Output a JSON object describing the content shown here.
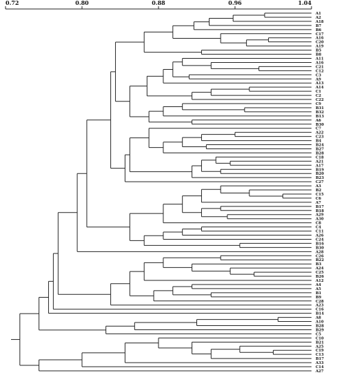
{
  "scale": {
    "min": 0.72,
    "max": 1.04,
    "ticks": [
      "0.72",
      "0.80",
      "0.88",
      "0.96",
      "1.04"
    ]
  },
  "leaves": [
    "A1",
    "A2",
    "A18",
    "B7",
    "B6",
    "C17",
    "A16",
    "C20",
    "A19",
    "B5",
    "B8",
    "A11",
    "A16",
    "C21",
    "C12",
    "C3",
    "A9",
    "A13",
    "A14",
    "C1",
    "C2",
    "C22",
    "C9",
    "B31",
    "B32",
    "B13",
    "A6",
    "B30",
    "C7",
    "A22",
    "C23",
    "B4",
    "B24",
    "B27",
    "B28",
    "C18",
    "A21",
    "A17",
    "B19",
    "B20",
    "B23",
    "C27",
    "A3",
    "B2",
    "C15",
    "C6",
    "A7",
    "B17",
    "B18",
    "A29",
    "A30",
    "C8",
    "C4",
    "C11",
    "A26",
    "C24",
    "B16",
    "B30",
    "A28",
    "C26",
    "B22",
    "B3",
    "A24",
    "C25",
    "B26",
    "A12",
    "A4",
    "A5",
    "B1",
    "B9",
    "C28",
    "A23",
    "C16",
    "B14",
    "A8",
    "A10",
    "B28",
    "B29",
    "C5",
    "C10",
    "B21",
    "A25",
    "C19",
    "C13",
    "B17",
    "A33",
    "C14",
    "A27"
  ],
  "clusters": {
    "A1": {
      "left": [
        "L",
        0
      ],
      "right": [
        "L",
        1
      ],
      "sim": 0.991
    },
    "A2": {
      "left": [
        "N",
        "A1"
      ],
      "right": [
        "L",
        2
      ],
      "sim": 0.958
    },
    "A3": {
      "left": [
        "N",
        "A2"
      ],
      "right": [
        "L",
        3
      ],
      "sim": 0.933
    },
    "A4": {
      "left": [
        "N",
        "A3"
      ],
      "right": [
        "L",
        4
      ],
      "sim": 0.917
    },
    "A5": {
      "left": [
        "L",
        6
      ],
      "right": [
        "L",
        7
      ],
      "sim": 0.995
    },
    "A6": {
      "left": [
        "N",
        "A5"
      ],
      "right": [
        "L",
        8
      ],
      "sim": 0.972
    },
    "A7": {
      "left": [
        "L",
        5
      ],
      "right": [
        "N",
        "A6"
      ],
      "sim": 0.945
    },
    "A8": {
      "left": [
        "N",
        "A4"
      ],
      "right": [
        "N",
        "A7"
      ],
      "sim": 0.895
    },
    "A9": {
      "left": [
        "L",
        9
      ],
      "right": [
        "L",
        10
      ],
      "sim": 0.925
    },
    "A10": {
      "left": [
        "N",
        "A8"
      ],
      "right": [
        "N",
        "A9"
      ],
      "sim": 0.865
    },
    "B1": {
      "left": [
        "L",
        13
      ],
      "right": [
        "L",
        14
      ],
      "sim": 0.985
    },
    "B2": {
      "left": [
        "L",
        12
      ],
      "right": [
        "N",
        "B1"
      ],
      "sim": 0.935
    },
    "B3": {
      "left": [
        "L",
        11
      ],
      "right": [
        "N",
        "B2"
      ],
      "sim": 0.905
    },
    "B4": {
      "left": [
        "L",
        15
      ],
      "right": [
        "L",
        16
      ],
      "sim": 0.912
    },
    "B5": {
      "left": [
        "N",
        "B3"
      ],
      "right": [
        "N",
        "B4"
      ],
      "sim": 0.895
    },
    "B6": {
      "left": [
        "N",
        "B5"
      ],
      "right": [
        "L",
        17
      ],
      "sim": 0.885
    },
    "B7": {
      "left": [
        "L",
        18
      ],
      "right": [
        "L",
        19
      ],
      "sim": 0.975
    },
    "B8": {
      "left": [
        "N",
        "B7"
      ],
      "right": [
        "L",
        20
      ],
      "sim": 0.935
    },
    "B9": {
      "left": [
        "N",
        "B8"
      ],
      "right": [
        "L",
        21
      ],
      "sim": 0.915
    },
    "B10": {
      "left": [
        "N",
        "B6"
      ],
      "right": [
        "N",
        "B9"
      ],
      "sim": 0.868
    },
    "B11": {
      "left": [
        "L",
        23
      ],
      "right": [
        "L",
        24
      ],
      "sim": 0.97
    },
    "B12": {
      "left": [
        "L",
        22
      ],
      "right": [
        "N",
        "B11"
      ],
      "sim": 0.905
    },
    "B13": {
      "left": [
        "N",
        "B12"
      ],
      "right": [
        "L",
        25
      ],
      "sim": 0.885
    },
    "B14": {
      "left": [
        "L",
        26
      ],
      "right": [
        "L",
        27
      ],
      "sim": 0.915
    },
    "B15": {
      "left": [
        "N",
        "B13"
      ],
      "right": [
        "N",
        "B14"
      ],
      "sim": 0.87
    },
    "B16": {
      "left": [
        "N",
        "B10"
      ],
      "right": [
        "N",
        "B15"
      ],
      "sim": 0.85
    },
    "B17": {
      "left": [
        "N",
        "A10"
      ],
      "right": [
        "N",
        "B16"
      ],
      "sim": 0.835
    },
    "C1": {
      "left": [
        "L",
        29
      ],
      "right": [
        "L",
        30
      ],
      "sim": 0.96
    },
    "C2": {
      "left": [
        "N",
        "C1"
      ],
      "right": [
        "L",
        31
      ],
      "sim": 0.925
    },
    "C3": {
      "left": [
        "L",
        32
      ],
      "right": [
        "L",
        33
      ],
      "sim": 0.93
    },
    "C4": {
      "left": [
        "N",
        "C2"
      ],
      "right": [
        "N",
        "C3"
      ],
      "sim": 0.905
    },
    "C5": {
      "left": [
        "N",
        "C4"
      ],
      "right": [
        "L",
        34
      ],
      "sim": 0.885
    },
    "C6": {
      "left": [
        "L",
        28
      ],
      "right": [
        "N",
        "C5"
      ],
      "sim": 0.87
    },
    "C7": {
      "left": [
        "L",
        36
      ],
      "right": [
        "L",
        37
      ],
      "sim": 0.955
    },
    "C8": {
      "left": [
        "L",
        35
      ],
      "right": [
        "N",
        "C7"
      ],
      "sim": 0.94
    },
    "C9": {
      "left": [
        "L",
        38
      ],
      "right": [
        "L",
        39
      ],
      "sim": 0.945
    },
    "C10": {
      "left": [
        "N",
        "C8"
      ],
      "right": [
        "N",
        "C9"
      ],
      "sim": 0.925
    },
    "C11": {
      "left": [
        "N",
        "C10"
      ],
      "right": [
        "L",
        40
      ],
      "sim": 0.915
    },
    "C12": {
      "left": [
        "N",
        "C6"
      ],
      "right": [
        "N",
        "C11"
      ],
      "sim": 0.85
    },
    "C13": {
      "left": [
        "N",
        "C12"
      ],
      "right": [
        "L",
        41
      ],
      "sim": 0.845
    },
    "C14": {
      "left": [
        "N",
        "B17"
      ],
      "right": [
        "N",
        "C13"
      ],
      "sim": 0.83
    },
    "D1": {
      "left": [
        "L",
        44
      ],
      "right": [
        "L",
        45
      ],
      "sim": 1.01
    },
    "D2": {
      "left": [
        "L",
        43
      ],
      "right": [
        "N",
        "D1"
      ],
      "sim": 0.975
    },
    "D3": {
      "left": [
        "L",
        42
      ],
      "right": [
        "N",
        "D2"
      ],
      "sim": 0.945
    },
    "D4": {
      "left": [
        "N",
        "D3"
      ],
      "right": [
        "L",
        46
      ],
      "sim": 0.925
    },
    "D5": {
      "left": [
        "L",
        47
      ],
      "right": [
        "L",
        48
      ],
      "sim": 0.945
    },
    "D6": {
      "left": [
        "L",
        49
      ],
      "right": [
        "L",
        50
      ],
      "sim": 0.952
    },
    "D7": {
      "left": [
        "N",
        "D5"
      ],
      "right": [
        "N",
        "D6"
      ],
      "sim": 0.925
    },
    "D8": {
      "left": [
        "N",
        "D4"
      ],
      "right": [
        "N",
        "D7"
      ],
      "sim": 0.905
    },
    "D9": {
      "left": [
        "N",
        "D8"
      ],
      "right": [
        "L",
        51
      ],
      "sim": 0.885
    },
    "D10": {
      "left": [
        "L",
        52
      ],
      "right": [
        "L",
        53
      ],
      "sim": 0.925
    },
    "D11": {
      "left": [
        "N",
        "D10"
      ],
      "right": [
        "L",
        54
      ],
      "sim": 0.905
    },
    "D12": {
      "left": [
        "N",
        "D11"
      ],
      "right": [
        "L",
        55
      ],
      "sim": 0.885
    },
    "D13": {
      "left": [
        "L",
        56
      ],
      "right": [
        "L",
        57
      ],
      "sim": 0.965
    },
    "D14": {
      "left": [
        "N",
        "D12"
      ],
      "right": [
        "N",
        "D13"
      ],
      "sim": 0.865
    },
    "D15": {
      "left": [
        "N",
        "D9"
      ],
      "right": [
        "N",
        "D14"
      ],
      "sim": 0.85
    },
    "E1": {
      "left": [
        "N",
        "C14"
      ],
      "right": [
        "N",
        "D15"
      ],
      "sim": 0.805
    },
    "E2": {
      "left": [
        "N",
        "E1"
      ],
      "right": [
        "L",
        58
      ],
      "sim": 0.795
    },
    "F1": {
      "left": [
        "L",
        59
      ],
      "right": [
        "L",
        60
      ],
      "sim": 0.945
    },
    "F2": {
      "left": [
        "L",
        63
      ],
      "right": [
        "L",
        64
      ],
      "sim": 0.98
    },
    "F3": {
      "left": [
        "L",
        62
      ],
      "right": [
        "N",
        "F2"
      ],
      "sim": 0.955
    },
    "F4": {
      "left": [
        "L",
        61
      ],
      "right": [
        "N",
        "F3"
      ],
      "sim": 0.915
    },
    "F5": {
      "left": [
        "N",
        "F1"
      ],
      "right": [
        "N",
        "F4"
      ],
      "sim": 0.885
    },
    "F6": {
      "left": [
        "N",
        "F5"
      ],
      "right": [
        "L",
        65
      ],
      "sim": 0.865
    },
    "F7": {
      "left": [
        "L",
        66
      ],
      "right": [
        "L",
        67
      ],
      "sim": 0.915
    },
    "F8": {
      "left": [
        "L",
        68
      ],
      "right": [
        "L",
        69
      ],
      "sim": 0.935
    },
    "F9": {
      "left": [
        "N",
        "F7"
      ],
      "right": [
        "N",
        "F8"
      ],
      "sim": 0.895
    },
    "F10": {
      "left": [
        "N",
        "F9"
      ],
      "right": [
        "L",
        70
      ],
      "sim": 0.875
    },
    "F11": {
      "left": [
        "N",
        "F6"
      ],
      "right": [
        "N",
        "F10"
      ],
      "sim": 0.85
    },
    "F12": {
      "left": [
        "N",
        "F11"
      ],
      "right": [
        "L",
        71
      ],
      "sim": 0.83
    },
    "G1": {
      "left": [
        "N",
        "E2"
      ],
      "right": [
        "N",
        "F12"
      ],
      "sim": 0.775
    },
    "G2": {
      "left": [
        "N",
        "G1"
      ],
      "right": [
        "L",
        72
      ],
      "sim": 0.77
    },
    "G3": {
      "left": [
        "N",
        "G2"
      ],
      "right": [
        "L",
        73
      ],
      "sim": 0.765
    },
    "H1": {
      "left": [
        "L",
        74
      ],
      "right": [
        "L",
        75
      ],
      "sim": 1.005
    },
    "H2": {
      "left": [
        "N",
        "H1"
      ],
      "right": [
        "L",
        76
      ],
      "sim": 0.92
    },
    "H3": {
      "left": [
        "N",
        "H2"
      ],
      "right": [
        "L",
        77
      ],
      "sim": 0.855
    },
    "H4": {
      "left": [
        "N",
        "H3"
      ],
      "right": [
        "L",
        78
      ],
      "sim": 0.825
    },
    "G4": {
      "left": [
        "N",
        "G3"
      ],
      "right": [
        "N",
        "H4"
      ],
      "sim": 0.755
    },
    "I1": {
      "left": [
        "L",
        82
      ],
      "right": [
        "L",
        83
      ],
      "sim": 1.0
    },
    "I2": {
      "left": [
        "L",
        81
      ],
      "right": [
        "N",
        "I1"
      ],
      "sim": 0.965
    },
    "I3": {
      "left": [
        "N",
        "I2"
      ],
      "right": [
        "L",
        84
      ],
      "sim": 0.935
    },
    "I4": {
      "left": [
        "L",
        80
      ],
      "right": [
        "N",
        "I3"
      ],
      "sim": 0.915
    },
    "I5": {
      "left": [
        "L",
        79
      ],
      "right": [
        "N",
        "I4"
      ],
      "sim": 0.88
    },
    "I6": {
      "left": [
        "N",
        "I5"
      ],
      "right": [
        "L",
        85
      ],
      "sim": 0.845
    },
    "I7": {
      "left": [
        "N",
        "I6"
      ],
      "right": [
        "L",
        86
      ],
      "sim": 0.8
    },
    "I8": {
      "left": [
        "N",
        "I7"
      ],
      "right": [
        "L",
        87
      ],
      "sim": 0.755
    },
    "ROOT": {
      "left": [
        "N",
        "G4"
      ],
      "right": [
        "N",
        "I8"
      ],
      "sim": 0.735
    }
  },
  "root": "ROOT"
}
